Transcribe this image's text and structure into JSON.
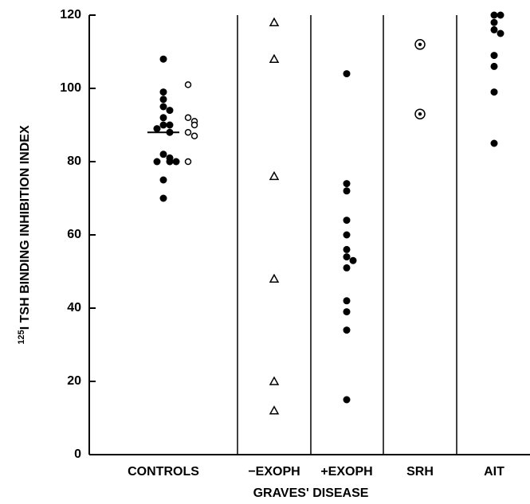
{
  "chart_data": {
    "type": "strip",
    "y_label_sup": "125",
    "y_label": "I TSH BINDING INHIBITION INDEX",
    "ylim": [
      0,
      120
    ],
    "yticks": [
      0,
      20,
      40,
      60,
      80,
      100,
      120
    ],
    "color": "#000000",
    "groups": [
      {
        "label": "CONTROLS",
        "mean": 88,
        "series": [
          {
            "marker": "filled",
            "values": [
              108,
              99,
              97,
              95,
              94,
              92,
              90,
              90,
              89,
              88,
              82,
              81,
              80,
              80,
              80,
              75,
              70
            ]
          },
          {
            "marker": "open",
            "values": [
              101,
              92,
              91,
              90,
              88,
              87,
              80
            ]
          }
        ]
      },
      {
        "label": "−EXOPH",
        "series": [
          {
            "marker": "triangle",
            "values": [
              118,
              108,
              76,
              48,
              20,
              12
            ]
          }
        ]
      },
      {
        "label": "+EXOPH",
        "series": [
          {
            "marker": "filled",
            "values": [
              104,
              74,
              72,
              64,
              60,
              56,
              54,
              53,
              51,
              42,
              39,
              34,
              15
            ]
          }
        ]
      },
      {
        "label": "SRH",
        "series": [
          {
            "marker": "target",
            "values": [
              112,
              93
            ]
          }
        ]
      },
      {
        "label": "AIT",
        "series": [
          {
            "marker": "filled",
            "values": [
              120,
              120,
              118,
              116,
              115,
              109,
              106,
              99,
              85
            ]
          }
        ]
      }
    ],
    "group_label": "GRAVES' DISEASE"
  }
}
